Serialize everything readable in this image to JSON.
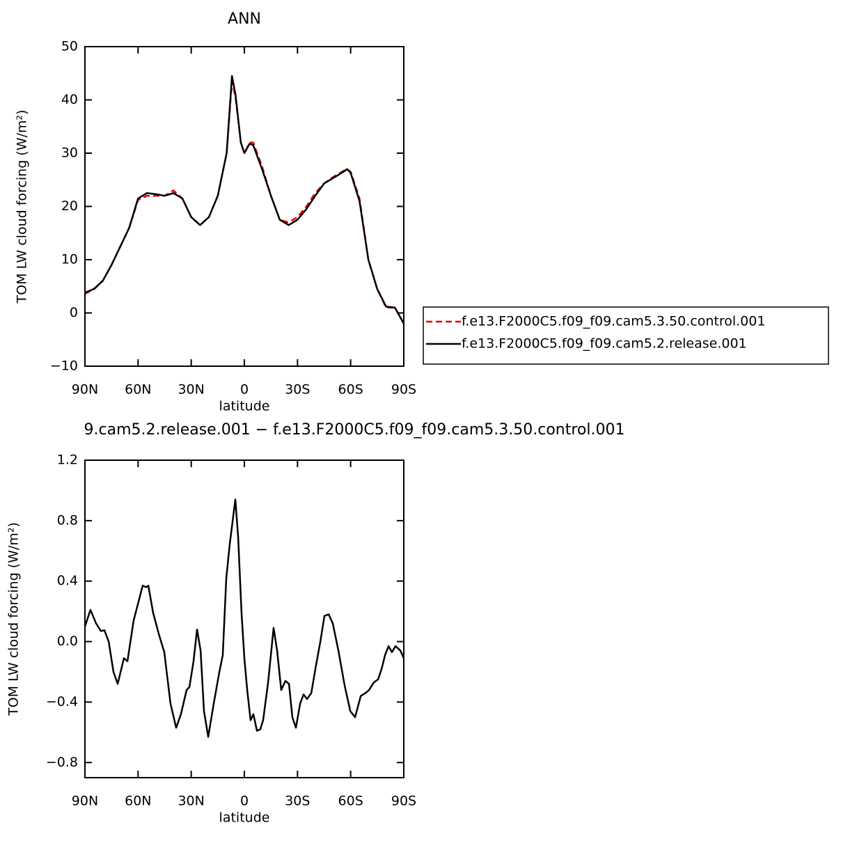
{
  "chart_data": [
    {
      "type": "line",
      "title": "ANN",
      "xlabel": "latitude",
      "ylabel": "TOM LW cloud forcing (W/m²)",
      "x": [
        90,
        85,
        80,
        75,
        70,
        65,
        60,
        55,
        50,
        45,
        40,
        35,
        30,
        25,
        20,
        15,
        10,
        7,
        5,
        2,
        0,
        -3,
        -5,
        -10,
        -15,
        -20,
        -25,
        -30,
        -35,
        -40,
        -45,
        -50,
        -55,
        -58,
        -60,
        -65,
        -70,
        -75,
        -80,
        -85,
        -90
      ],
      "series": [
        {
          "name": "f.e13.F2000C5.f09_f09.cam5.3.50.control.001",
          "color": "#e00000",
          "dashed": true,
          "values": [
            3.6,
            4.4,
            6,
            9,
            12.5,
            16,
            21.2,
            22,
            22,
            22,
            23,
            21.5,
            18,
            16.5,
            18,
            22,
            30,
            43.5,
            40.5,
            32,
            30,
            32,
            32,
            27.5,
            22,
            17.5,
            17,
            18,
            20,
            22.5,
            24.3,
            25.5,
            26.5,
            27,
            26.5,
            21.5,
            10,
            4.5,
            1,
            1,
            -2
          ]
        },
        {
          "name": "f.e13.F2000C5.f09_f09.cam5.2.release.001",
          "color": "#000000",
          "dashed": false,
          "values": [
            3.8,
            4.5,
            6,
            9,
            12.5,
            16,
            21.5,
            22.5,
            22.3,
            22,
            22.5,
            21.5,
            18,
            16.5,
            18,
            22,
            30,
            44.5,
            41,
            32,
            30,
            31.8,
            31.5,
            27,
            22,
            17.5,
            16.5,
            17.5,
            19.5,
            22,
            24.3,
            25.3,
            26.3,
            27,
            26.3,
            21,
            10,
            4.5,
            1.2,
            1,
            -2
          ]
        }
      ],
      "xlim": [
        90,
        -90
      ],
      "xticks": [
        {
          "value": 90,
          "label": "90N"
        },
        {
          "value": 60,
          "label": "60N"
        },
        {
          "value": 30,
          "label": "30N"
        },
        0,
        {
          "value": -30,
          "label": "30S"
        },
        {
          "value": -60,
          "label": "60S"
        },
        {
          "value": -90,
          "label": "90S"
        }
      ],
      "ylim": [
        -10,
        50
      ],
      "yticks": [
        50,
        40,
        30,
        20,
        10,
        0,
        {
          "value": -10,
          "label": "−10"
        }
      ],
      "legend": "right"
    },
    {
      "type": "line",
      "title": "9.cam5.2.release.001 − f.e13.F2000C5.f09_f09.cam5.3.50.control.001",
      "xlabel": "latitude",
      "ylabel": "TOM LW cloud forcing (W/m²)",
      "x": [
        90,
        86.9,
        83.7,
        81,
        79,
        76.6,
        73.9,
        71.5,
        68,
        66,
        62.5,
        57.4,
        55.4,
        54.2,
        51.5,
        48.3,
        45.2,
        41.7,
        38.5,
        35.8,
        32.6,
        31,
        28.7,
        26.7,
        24.7,
        22.8,
        20.4,
        17.3,
        14.1,
        12.2,
        10.2,
        8.2,
        6.7,
        5.1,
        3.5,
        1.6,
        0,
        -1.6,
        -3.5,
        -5.1,
        -7.1,
        -9,
        -10.6,
        -13.4,
        -16.5,
        -18.5,
        -20.8,
        -23.2,
        -25.2,
        -27.1,
        -29.1,
        -31.5,
        -33.4,
        -35.4,
        -37.8,
        -40.1,
        -42.9,
        -45.2,
        -47.6,
        -49.9,
        -53.1,
        -56.6,
        -59.8,
        -62.5,
        -65.7,
        -68.4,
        -70.4,
        -73.1,
        -75.5,
        -77.5,
        -79.4,
        -81.4,
        -83.3,
        -85.3,
        -88.1,
        -90
      ],
      "values": [
        0.1,
        0.21,
        0.12,
        0.07,
        0.075,
        0,
        -0.2,
        -0.28,
        -0.11,
        -0.13,
        0.14,
        0.37,
        0.36,
        0.37,
        0.19,
        0.05,
        -0.07,
        -0.41,
        -0.57,
        -0.48,
        -0.32,
        -0.3,
        -0.13,
        0.08,
        -0.06,
        -0.46,
        -0.63,
        -0.41,
        -0.2,
        -0.09,
        0.42,
        0.65,
        0.79,
        0.94,
        0.69,
        0.19,
        -0.11,
        -0.32,
        -0.52,
        -0.48,
        -0.59,
        -0.58,
        -0.52,
        -0.27,
        0.09,
        -0.06,
        -0.32,
        -0.26,
        -0.28,
        -0.5,
        -0.57,
        -0.41,
        -0.35,
        -0.38,
        -0.34,
        -0.18,
        0,
        0.17,
        0.18,
        0.12,
        -0.06,
        -0.29,
        -0.46,
        -0.5,
        -0.36,
        -0.34,
        -0.32,
        -0.27,
        -0.25,
        -0.18,
        -0.09,
        -0.03,
        -0.07,
        -0.03,
        -0.06,
        -0.11
      ],
      "color": "#000000",
      "xlim": [
        90,
        -90
      ],
      "xticks": [
        {
          "value": 90,
          "label": "90N"
        },
        {
          "value": 60,
          "label": "60N"
        },
        {
          "value": 30,
          "label": "30N"
        },
        0,
        {
          "value": -30,
          "label": "30S"
        },
        {
          "value": -60,
          "label": "60S"
        },
        {
          "value": -90,
          "label": "90S"
        }
      ],
      "ylim": [
        -0.9,
        1.2
      ],
      "yticks": [
        1.2,
        0.8,
        0.4,
        {
          "value": 0,
          "label": "0.0"
        },
        {
          "value": -0.4,
          "label": "−0.4"
        },
        {
          "value": -0.8,
          "label": "−0.8"
        }
      ]
    }
  ]
}
